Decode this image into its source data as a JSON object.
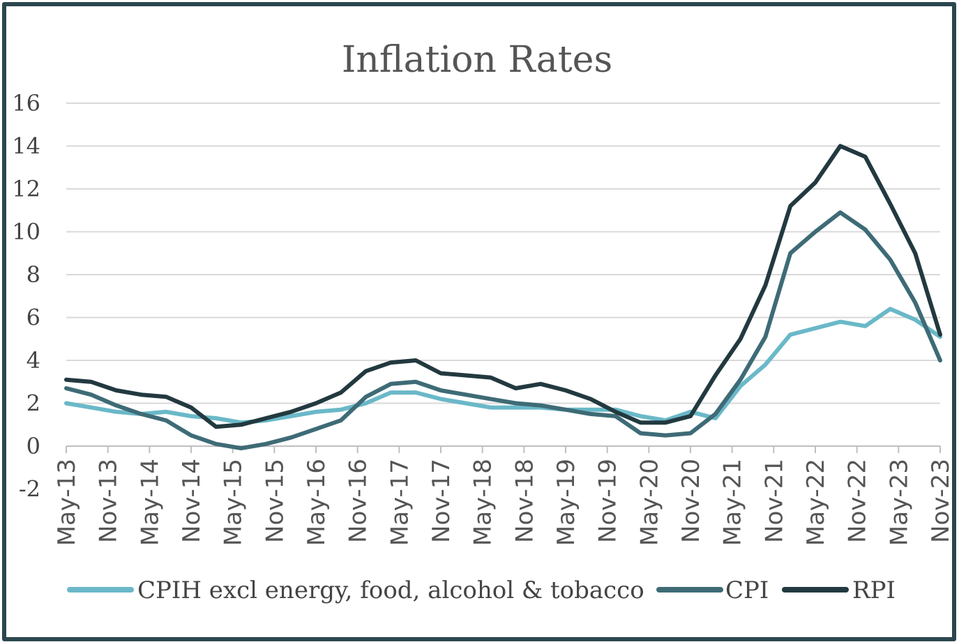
{
  "chart_data": {
    "type": "line",
    "title": "Inflation Rates",
    "xlabel": "",
    "ylabel": "",
    "ylim": [
      -2,
      16
    ],
    "yticks": [
      "16",
      "14",
      "12",
      "10",
      "8",
      "6",
      "4",
      "2",
      "0",
      "-2"
    ],
    "ytick_values": [
      16,
      14,
      12,
      10,
      8,
      6,
      4,
      2,
      0,
      -2
    ],
    "x_tick_labels": [
      "May-13",
      "Nov-13",
      "May-14",
      "Nov-14",
      "May-15",
      "Nov-15",
      "May-16",
      "Nov-16",
      "May-17",
      "Nov-17",
      "May-18",
      "Nov-18",
      "May-19",
      "Nov-19",
      "May-20",
      "Nov-20",
      "May-21",
      "Nov-21",
      "May-22",
      "Nov-22",
      "May-23",
      "Nov-23"
    ],
    "grid": true,
    "legend_position": "bottom",
    "series": [
      {
        "name": "CPIH excl energy, food, alcohol & tobacco",
        "color": "#6ab8c8",
        "values": [
          2.0,
          1.8,
          1.6,
          1.5,
          1.6,
          1.4,
          1.3,
          1.1,
          1.2,
          1.4,
          1.6,
          1.7,
          2.0,
          2.5,
          2.5,
          2.2,
          2.0,
          1.8,
          1.8,
          1.8,
          1.7,
          1.7,
          1.7,
          1.4,
          1.2,
          1.6,
          1.3,
          2.8,
          3.8,
          5.2,
          5.5,
          5.8,
          5.6,
          6.4,
          5.9,
          5.1
        ]
      },
      {
        "name": "CPI",
        "color": "#3e6b76",
        "values": [
          2.7,
          2.4,
          1.9,
          1.5,
          1.2,
          0.5,
          0.1,
          -0.1,
          0.1,
          0.4,
          0.8,
          1.2,
          2.3,
          2.9,
          3.0,
          2.6,
          2.4,
          2.2,
          2.0,
          1.9,
          1.7,
          1.5,
          1.4,
          0.6,
          0.5,
          0.6,
          1.5,
          3.1,
          5.1,
          9.0,
          10.0,
          10.9,
          10.1,
          8.7,
          6.7,
          4.0
        ]
      },
      {
        "name": "RPI",
        "color": "#22393f",
        "values": [
          3.1,
          3.0,
          2.6,
          2.4,
          2.3,
          1.8,
          0.9,
          1.0,
          1.3,
          1.6,
          2.0,
          2.5,
          3.5,
          3.9,
          4.0,
          3.4,
          3.3,
          3.2,
          2.7,
          2.9,
          2.6,
          2.2,
          1.6,
          1.1,
          1.1,
          1.4,
          3.3,
          5.0,
          7.5,
          11.2,
          12.3,
          14.0,
          13.5,
          11.3,
          9.0,
          5.2
        ]
      }
    ]
  }
}
